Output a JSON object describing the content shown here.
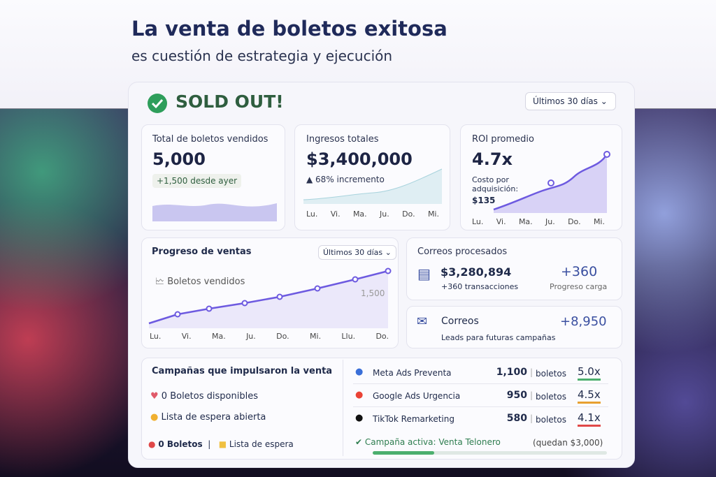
{
  "header": {
    "title": "La venta de boletos exitosa",
    "subtitle": "es cuestión de estrategia y ejecución"
  },
  "status": {
    "label": "SOLD OUT!",
    "period": "Últimos 30 días"
  },
  "kpis": [
    {
      "title": "Total de boletos vendidos",
      "value": "5,000",
      "note": "+1,500 desde ayer"
    },
    {
      "title": "Ingresos totales",
      "value": "$3,400,000",
      "note": "68% incremento",
      "days": [
        "Lu.",
        "Vi.",
        "Ma.",
        "Ju.",
        "Do.",
        "Mi."
      ]
    },
    {
      "title": "ROI promedio",
      "value": "4.7x",
      "note": "Costo por adquisición:",
      "note_value": "$135",
      "days": [
        "Lu.",
        "Vi.",
        "Ma.",
        "Ju.",
        "Do.",
        "Mi."
      ]
    }
  ],
  "progress": {
    "title": "Progreso de ventas",
    "period": "Últimos 30 días",
    "legend": "Boletos vendidos",
    "label": "1,500",
    "days": [
      "Lu.",
      "Vi.",
      "Ma.",
      "Ju.",
      "Do.",
      "Mi.",
      "Llu.",
      "Do."
    ]
  },
  "emails": {
    "title": "Correos procesados",
    "amount": "$3,280,894",
    "sub": "+360 transacciones",
    "delta": "+360",
    "delta_label": "Progreso carga"
  },
  "mail": {
    "title": "Correos",
    "value": "+8,950",
    "sub": "Leads para futuras campañas"
  },
  "campaigns": {
    "title": "Campañas que impulsaron la venta",
    "items": [
      "0 Boletos disponibles",
      "Lista de espera abierta"
    ],
    "footer": [
      "0 Boletos",
      "Lista de espera"
    ]
  },
  "ads": [
    {
      "name": "Meta Ads Preventa",
      "count": "1,100",
      "unit": "boletos",
      "roi": "5.0x"
    },
    {
      "name": "Google Ads Urgencia",
      "count": "950",
      "unit": "boletos",
      "roi": "4.5x"
    },
    {
      "name": "TikTok Remarketing",
      "count": "580",
      "unit": "boletos",
      "roi": "4.1x"
    }
  ],
  "active": {
    "label": "Campaña activa: Venta Telonero",
    "remaining": "(quedan $3,000)"
  }
}
